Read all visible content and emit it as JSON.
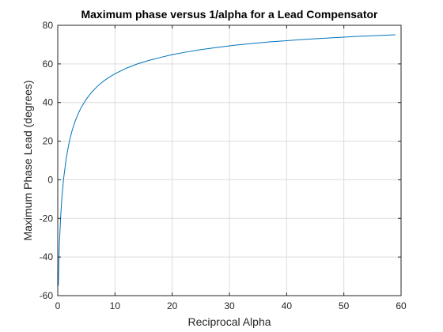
{
  "chart_data": {
    "type": "line",
    "title": "Maximum phase versus 1/alpha for a Lead Compensator",
    "xlabel": "Reciprocal Alpha",
    "ylabel": "Maximum Phase Lead (degrees)",
    "xlim": [
      0,
      60
    ],
    "ylim": [
      -60,
      80
    ],
    "xticks": [
      0,
      10,
      20,
      30,
      40,
      50,
      60
    ],
    "yticks": [
      -60,
      -40,
      -20,
      0,
      20,
      40,
      60,
      80
    ],
    "grid": true,
    "colors": {
      "line": "#0072BD",
      "grid": "#dcdcdc",
      "axes": "#262626"
    },
    "series": [
      {
        "x": [
          0.1,
          0.2,
          0.3,
          0.5,
          0.7,
          1,
          1.5,
          2,
          2.5,
          3,
          3.5,
          4,
          5,
          6,
          7,
          8,
          9,
          10,
          12,
          14,
          16,
          18,
          20,
          22,
          25,
          28,
          31,
          34,
          37,
          40,
          43,
          46,
          49,
          52,
          55,
          59
        ],
        "y": [
          -54.9,
          -42.0,
          -32.6,
          -19.5,
          -10.2,
          0.0,
          11.5,
          19.5,
          25.4,
          30.0,
          33.7,
          36.9,
          41.8,
          45.6,
          48.6,
          51.1,
          53.1,
          54.9,
          57.8,
          60.1,
          61.9,
          63.4,
          64.8,
          65.9,
          67.4,
          68.6,
          69.7,
          70.6,
          71.4,
          72.0,
          72.7,
          73.2,
          73.7,
          74.2,
          74.6,
          75.1
        ]
      }
    ]
  }
}
